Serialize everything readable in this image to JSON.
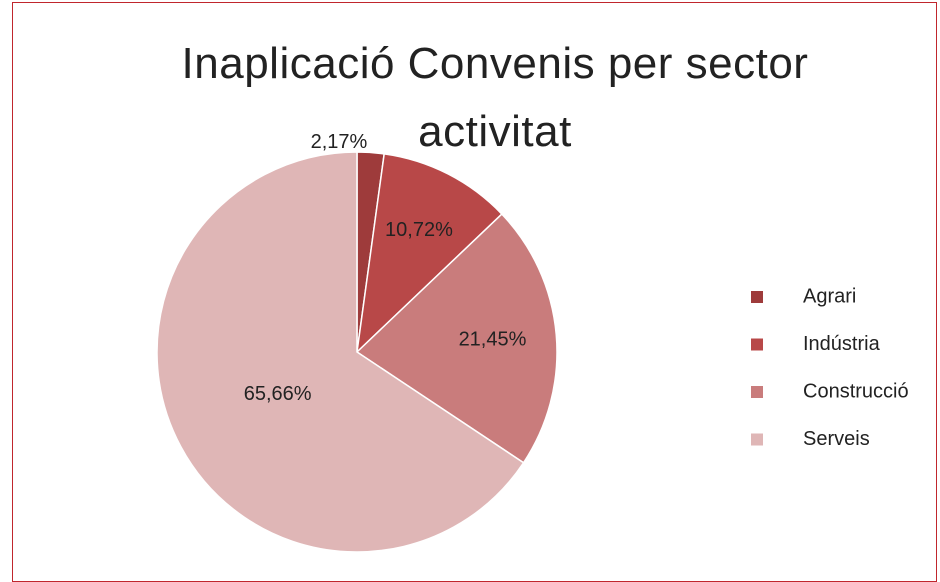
{
  "chart_data": {
    "type": "pie",
    "title": "Inaplicació Convenis per sector activitat",
    "categories": [
      "Agrari",
      "Indústria",
      "Construcció",
      "Serveis"
    ],
    "values": [
      2.17,
      10.72,
      21.45,
      65.66
    ],
    "value_labels": [
      "2,17%",
      "10,72%",
      "21,45%",
      "65,66%"
    ],
    "colors": [
      "#9e3b3b",
      "#b84848",
      "#c97c7c",
      "#dfb6b6"
    ],
    "legend": "right"
  }
}
